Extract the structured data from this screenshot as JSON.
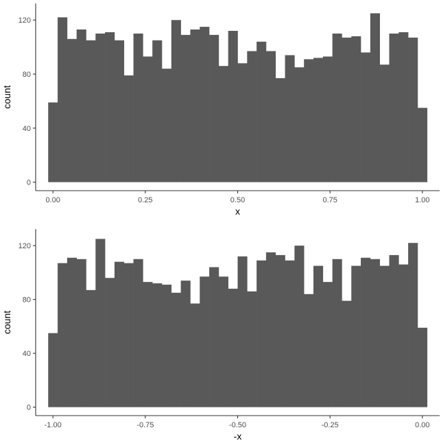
{
  "chart_data": [
    {
      "type": "bar",
      "xlabel": "x",
      "ylabel": "count",
      "xlim": [
        -0.0467,
        1.0467
      ],
      "ylim": [
        -6.3,
        132.3
      ],
      "xticks": [
        0.0,
        0.25,
        0.5,
        0.75,
        1.0
      ],
      "xtick_labels": [
        "0.00",
        "0.25",
        "0.50",
        "0.75",
        "1.00"
      ],
      "yticks": [
        0,
        40,
        80,
        120
      ],
      "ytick_labels": [
        "0",
        "40",
        "80",
        "120"
      ],
      "bin_width": 0.025641,
      "bin_centers": [
        0.0,
        0.025641,
        0.051282,
        0.076923,
        0.102564,
        0.128205,
        0.153846,
        0.179487,
        0.205128,
        0.230769,
        0.25641,
        0.282051,
        0.307692,
        0.333333,
        0.358974,
        0.384615,
        0.410256,
        0.435897,
        0.461538,
        0.487179,
        0.512821,
        0.538462,
        0.564103,
        0.589744,
        0.615385,
        0.641026,
        0.666667,
        0.692308,
        0.717949,
        0.74359,
        0.769231,
        0.794872,
        0.820513,
        0.846154,
        0.871795,
        0.897436,
        0.923077,
        0.948718,
        0.974359,
        1.0
      ],
      "values": [
        59,
        122,
        106,
        113,
        105,
        110,
        111,
        105,
        79,
        110,
        93,
        105,
        84,
        120,
        109,
        113,
        115,
        109,
        86,
        112,
        88,
        97,
        104,
        97,
        77,
        94,
        85,
        91,
        92,
        93,
        110,
        107,
        108,
        96,
        125,
        87,
        110,
        111,
        107,
        55
      ]
    },
    {
      "type": "bar",
      "xlabel": "-x",
      "ylabel": "count",
      "xlim": [
        -1.0467,
        0.0467
      ],
      "ylim": [
        -6.3,
        132.3
      ],
      "xticks": [
        -1.0,
        -0.75,
        -0.5,
        -0.25,
        0.0
      ],
      "xtick_labels": [
        "-1.00",
        "-0.75",
        "-0.50",
        "-0.25",
        "0.00"
      ],
      "yticks": [
        0,
        40,
        80,
        120
      ],
      "ytick_labels": [
        "0",
        "40",
        "80",
        "120"
      ],
      "bin_width": 0.025641,
      "bin_centers": [
        -1.0,
        -0.974359,
        -0.948718,
        -0.923077,
        -0.897436,
        -0.871795,
        -0.846154,
        -0.820513,
        -0.794872,
        -0.769231,
        -0.74359,
        -0.717949,
        -0.692308,
        -0.666667,
        -0.641026,
        -0.615385,
        -0.589744,
        -0.564103,
        -0.538462,
        -0.512821,
        -0.487179,
        -0.461538,
        -0.435897,
        -0.410256,
        -0.384615,
        -0.358974,
        -0.333333,
        -0.307692,
        -0.282051,
        -0.25641,
        -0.230769,
        -0.205128,
        -0.179487,
        -0.153846,
        -0.128205,
        -0.102564,
        -0.076923,
        -0.051282,
        -0.025641,
        0.0
      ],
      "values": [
        55,
        107,
        111,
        110,
        87,
        125,
        96,
        108,
        107,
        110,
        93,
        92,
        91,
        85,
        94,
        77,
        97,
        104,
        97,
        88,
        112,
        86,
        109,
        115,
        113,
        109,
        120,
        84,
        105,
        93,
        110,
        79,
        105,
        111,
        110,
        105,
        113,
        106,
        122,
        59
      ]
    }
  ]
}
